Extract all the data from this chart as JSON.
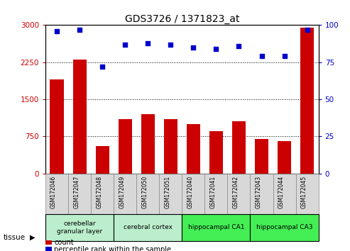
{
  "title": "GDS3726 / 1371823_at",
  "samples": [
    "GSM172046",
    "GSM172047",
    "GSM172048",
    "GSM172049",
    "GSM172050",
    "GSM172051",
    "GSM172040",
    "GSM172041",
    "GSM172042",
    "GSM172043",
    "GSM172044",
    "GSM172045"
  ],
  "counts": [
    1900,
    2300,
    550,
    1100,
    1200,
    1100,
    1000,
    850,
    1050,
    700,
    650,
    2950
  ],
  "percentiles": [
    96,
    97,
    72,
    87,
    88,
    87,
    85,
    84,
    86,
    79,
    79,
    97
  ],
  "bar_color": "#cc0000",
  "dot_color": "#0000cc",
  "ylim_left": [
    0,
    3000
  ],
  "ylim_right": [
    0,
    100
  ],
  "yticks_left": [
    0,
    750,
    1500,
    2250,
    3000
  ],
  "yticks_right": [
    0,
    25,
    50,
    75,
    100
  ],
  "tissue_groups": [
    {
      "label": "cerebellar\ngranular layer",
      "start": 0,
      "end": 3,
      "color": "#bbeecc"
    },
    {
      "label": "cerebral cortex",
      "start": 3,
      "end": 6,
      "color": "#bbeecc"
    },
    {
      "label": "hippocampal CA1",
      "start": 6,
      "end": 9,
      "color": "#44ee55"
    },
    {
      "label": "hippocampal CA3",
      "start": 9,
      "end": 12,
      "color": "#44ee55"
    }
  ],
  "tissue_label": "tissue",
  "legend_count_label": "count",
  "legend_percentile_label": "percentile rank within the sample",
  "background_color": "#ffffff",
  "plot_bg_color": "#ffffff",
  "xtick_bg_color": "#d8d8d8"
}
